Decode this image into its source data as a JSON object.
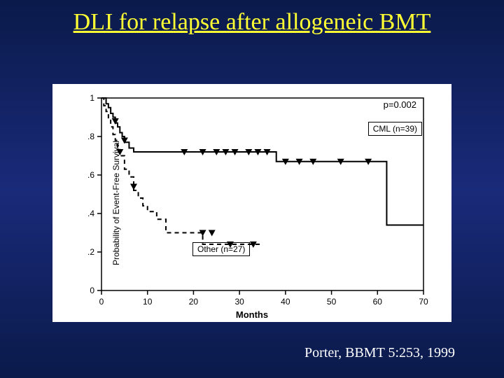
{
  "slide": {
    "title": "DLI for relapse after allogeneic BMT",
    "citation": "Porter, BBMT 5:253, 1999",
    "background_gradient": [
      "#0a1a4a",
      "#1a2a7a",
      "#0a1a4a"
    ],
    "title_color": "#ffff33",
    "citation_color": "#ffffff"
  },
  "chart": {
    "type": "kaplan-meier-survival",
    "background_color": "#ffffff",
    "line_color": "#000000",
    "x_axis": {
      "label": "Months",
      "min": 0,
      "max": 70,
      "tick_step": 10,
      "ticks": [
        0,
        10,
        20,
        30,
        40,
        50,
        60,
        70
      ],
      "label_fontsize": 13
    },
    "y_axis": {
      "label": "Probability of Event-Free Survival",
      "min": 0,
      "max": 1,
      "tick_step": 0.2,
      "ticks": [
        0,
        0.2,
        0.4,
        0.6,
        0.8,
        1
      ],
      "tick_labels": [
        "0",
        ".2",
        ".4",
        ".6",
        ".8",
        "1"
      ],
      "label_fontsize": 12
    },
    "p_value": "p=0.002",
    "series": [
      {
        "name": "CML",
        "label": "CML (n=39)",
        "n": 39,
        "line_style": "solid",
        "line_width": 2,
        "marker": "triangle-down",
        "steps": [
          [
            0,
            1.0
          ],
          [
            1,
            0.97
          ],
          [
            1.5,
            0.95
          ],
          [
            2,
            0.92
          ],
          [
            2.5,
            0.9
          ],
          [
            3,
            0.87
          ],
          [
            3.5,
            0.85
          ],
          [
            4,
            0.82
          ],
          [
            4.5,
            0.8
          ],
          [
            5,
            0.77
          ],
          [
            6,
            0.74
          ],
          [
            7,
            0.72
          ],
          [
            8,
            0.72
          ],
          [
            10,
            0.72
          ],
          [
            15,
            0.72
          ],
          [
            20,
            0.72
          ],
          [
            25,
            0.72
          ],
          [
            30,
            0.72
          ],
          [
            35,
            0.72
          ],
          [
            38,
            0.72
          ],
          [
            38,
            0.67
          ],
          [
            45,
            0.67
          ],
          [
            50,
            0.67
          ],
          [
            55,
            0.67
          ],
          [
            60,
            0.67
          ],
          [
            62,
            0.67
          ],
          [
            62,
            0.34
          ],
          [
            70,
            0.34
          ]
        ],
        "censor_marks": [
          [
            3,
            0.88
          ],
          [
            5,
            0.78
          ],
          [
            18,
            0.72
          ],
          [
            22,
            0.72
          ],
          [
            25,
            0.72
          ],
          [
            27,
            0.72
          ],
          [
            29,
            0.72
          ],
          [
            32,
            0.72
          ],
          [
            34,
            0.72
          ],
          [
            36,
            0.72
          ],
          [
            40,
            0.67
          ],
          [
            43,
            0.67
          ],
          [
            46,
            0.67
          ],
          [
            52,
            0.67
          ],
          [
            58,
            0.67
          ]
        ]
      },
      {
        "name": "Other",
        "label": "Other (n=27)",
        "n": 27,
        "line_style": "dashed",
        "line_width": 2,
        "marker": "triangle-down",
        "steps": [
          [
            0,
            1.0
          ],
          [
            0.5,
            0.96
          ],
          [
            1,
            0.93
          ],
          [
            1.5,
            0.89
          ],
          [
            2,
            0.85
          ],
          [
            2.5,
            0.81
          ],
          [
            3,
            0.78
          ],
          [
            3.5,
            0.74
          ],
          [
            4,
            0.7
          ],
          [
            5,
            0.63
          ],
          [
            6,
            0.59
          ],
          [
            7,
            0.52
          ],
          [
            8,
            0.48
          ],
          [
            9,
            0.44
          ],
          [
            10,
            0.41
          ],
          [
            12,
            0.37
          ],
          [
            14,
            0.3
          ],
          [
            16,
            0.3
          ],
          [
            18,
            0.3
          ],
          [
            20,
            0.3
          ],
          [
            21,
            0.3
          ],
          [
            22,
            0.24
          ],
          [
            27,
            0.24
          ],
          [
            35,
            0.24
          ]
        ],
        "censor_marks": [
          [
            4,
            0.72
          ],
          [
            7,
            0.54
          ],
          [
            22,
            0.3
          ],
          [
            24,
            0.3
          ],
          [
            28,
            0.24
          ],
          [
            33,
            0.24
          ]
        ]
      }
    ]
  }
}
